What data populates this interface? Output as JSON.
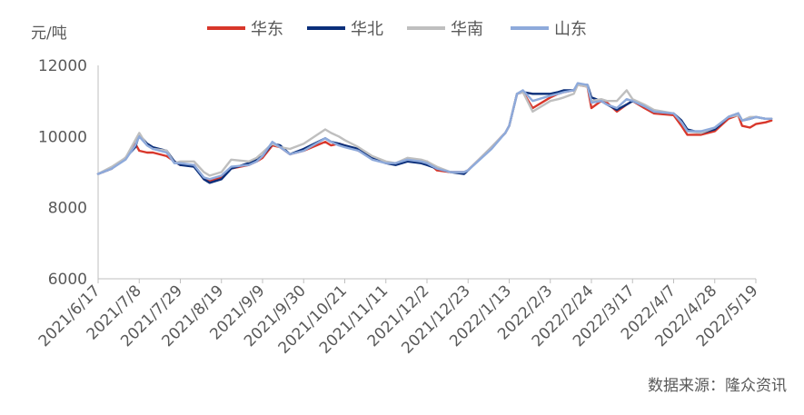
{
  "chart_data": {
    "type": "line",
    "ylabel": "元/吨",
    "source": "数据来源：隆众资讯",
    "ylim": [
      6000,
      12000
    ],
    "yticks": [
      6000,
      8000,
      10000,
      12000
    ],
    "legend_position": "top",
    "x_tick_labels": [
      "2021/6/17",
      "2021/7/8",
      "2021/7/29",
      "2021/8/19",
      "2021/9/9",
      "2021/9/30",
      "2021/10/21",
      "2021/11/11",
      "2021/12/2",
      "2021/12/23",
      "2022/1/13",
      "2022/2/3",
      "2022/2/24",
      "2022/3/17",
      "2022/4/7",
      "2022/4/28",
      "2022/5/19"
    ],
    "x": [
      "2021/6/17",
      "2021/6/24",
      "2021/7/1",
      "2021/7/6",
      "2021/7/8",
      "2021/7/12",
      "2021/7/15",
      "2021/7/22",
      "2021/7/26",
      "2021/7/29",
      "2021/8/5",
      "2021/8/10",
      "2021/8/13",
      "2021/8/19",
      "2021/8/24",
      "2021/9/2",
      "2021/9/6",
      "2021/9/9",
      "2021/9/14",
      "2021/9/18",
      "2021/9/23",
      "2021/9/30",
      "2021/10/11",
      "2021/10/14",
      "2021/10/18",
      "2021/10/21",
      "2021/10/28",
      "2021/11/4",
      "2021/11/11",
      "2021/11/16",
      "2021/11/22",
      "2021/11/29",
      "2021/12/2",
      "2021/12/7",
      "2021/12/14",
      "2021/12/21",
      "2021/12/23",
      "2022/1/4",
      "2022/1/11",
      "2022/1/13",
      "2022/1/17",
      "2022/1/20",
      "2022/1/25",
      "2022/2/3",
      "2022/2/7",
      "2022/2/10",
      "2022/2/15",
      "2022/2/17",
      "2022/2/22",
      "2022/2/24",
      "2022/3/1",
      "2022/3/4",
      "2022/3/9",
      "2022/3/14",
      "2022/3/17",
      "2022/3/23",
      "2022/3/28",
      "2022/4/7",
      "2022/4/11",
      "2022/4/14",
      "2022/4/21",
      "2022/4/28",
      "2022/5/5",
      "2022/5/10",
      "2022/5/12",
      "2022/5/16",
      "2022/5/19",
      "2022/5/24",
      "2022/5/27"
    ],
    "series": [
      {
        "name": "华东",
        "color": "#d8372b",
        "values": [
          8950,
          9100,
          9400,
          9800,
          9600,
          9550,
          9550,
          9450,
          9300,
          9200,
          9200,
          8800,
          8750,
          8850,
          9100,
          9200,
          9300,
          9400,
          9750,
          9700,
          9500,
          9600,
          9850,
          9750,
          9800,
          9750,
          9600,
          9400,
          9250,
          9250,
          9350,
          9300,
          9300,
          9050,
          9000,
          9000,
          9050,
          9700,
          10100,
          10300,
          11200,
          11250,
          10800,
          11100,
          11200,
          11250,
          11300,
          11450,
          11400,
          10800,
          11000,
          10950,
          10700,
          10900,
          11000,
          10800,
          10650,
          10600,
          10300,
          10050,
          10050,
          10150,
          10500,
          10600,
          10300,
          10250,
          10350,
          10400,
          10450
        ]
      },
      {
        "name": "华北",
        "color": "#0b2f7a",
        "values": [
          8950,
          9100,
          9400,
          9700,
          10050,
          9800,
          9700,
          9600,
          9300,
          9200,
          9150,
          8800,
          8700,
          8800,
          9100,
          9250,
          9350,
          9450,
          9800,
          9750,
          9500,
          9650,
          9950,
          9850,
          9800,
          9750,
          9650,
          9400,
          9250,
          9200,
          9300,
          9250,
          9200,
          9100,
          9000,
          8950,
          9050,
          9700,
          10100,
          10300,
          11200,
          11250,
          11200,
          11200,
          11250,
          11300,
          11300,
          11450,
          11450,
          11100,
          11000,
          10900,
          10750,
          10900,
          11000,
          10850,
          10700,
          10650,
          10450,
          10200,
          10100,
          10200,
          10550,
          10650,
          10450,
          10500,
          10550,
          10500,
          10500
        ]
      },
      {
        "name": "华南",
        "color": "#bfbfbf",
        "values": [
          8950,
          9150,
          9400,
          9900,
          10100,
          9750,
          9650,
          9600,
          9250,
          9300,
          9300,
          9000,
          8900,
          9000,
          9350,
          9300,
          9400,
          9550,
          9800,
          9700,
          9650,
          9800,
          10200,
          10100,
          10000,
          9900,
          9700,
          9450,
          9300,
          9250,
          9400,
          9350,
          9300,
          9150,
          9000,
          9000,
          9050,
          9700,
          10100,
          10300,
          11200,
          11250,
          10700,
          11000,
          11050,
          11100,
          11200,
          11450,
          11400,
          11000,
          11050,
          11000,
          11000,
          11300,
          11050,
          10900,
          10750,
          10650,
          10400,
          10150,
          10100,
          10250,
          10550,
          10600,
          10450,
          10550,
          10550,
          10500,
          10500
        ]
      },
      {
        "name": "山东",
        "color": "#8eaadb",
        "values": [
          8950,
          9100,
          9350,
          9750,
          10000,
          9750,
          9650,
          9550,
          9250,
          9250,
          9200,
          8850,
          8800,
          8900,
          9150,
          9200,
          9300,
          9450,
          9850,
          9700,
          9500,
          9600,
          9950,
          9850,
          9750,
          9700,
          9600,
          9350,
          9250,
          9250,
          9350,
          9300,
          9250,
          9100,
          9000,
          9000,
          9050,
          9650,
          10100,
          10300,
          11200,
          11300,
          11000,
          11150,
          11200,
          11250,
          11300,
          11500,
          11450,
          10950,
          11000,
          10900,
          10800,
          11050,
          11000,
          10850,
          10700,
          10650,
          10400,
          10150,
          10150,
          10250,
          10550,
          10650,
          10450,
          10500,
          10550,
          10500,
          10500
        ]
      }
    ]
  }
}
